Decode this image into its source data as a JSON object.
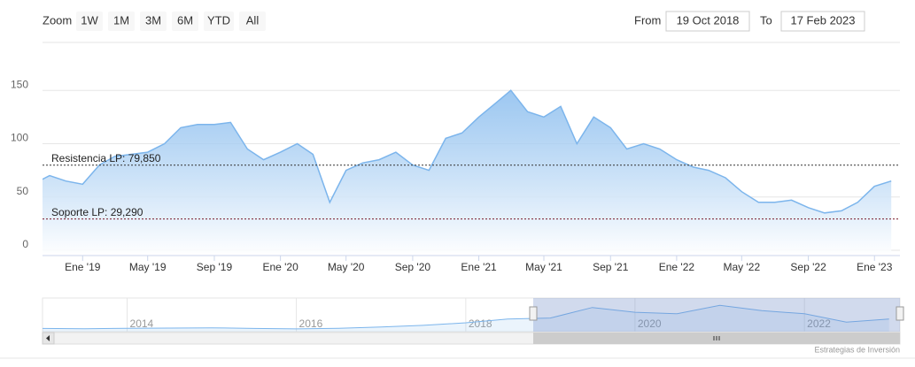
{
  "chart_data": {
    "type": "area",
    "zoom_label": "Zoom",
    "range_buttons": [
      "1W",
      "1M",
      "3M",
      "6M",
      "YTD",
      "All"
    ],
    "from_label": "From",
    "from_value": "19 Oct 2018",
    "to_label": "To",
    "to_value": "17 Feb 2023",
    "color": "#7cb5ec",
    "x": [
      "2018-10",
      "2018-11",
      "2018-12",
      "2019-01",
      "2019-02",
      "2019-03",
      "2019-04",
      "2019-05",
      "2019-06",
      "2019-07",
      "2019-08",
      "2019-09",
      "2019-10",
      "2019-11",
      "2019-12",
      "2020-01",
      "2020-02",
      "2020-03",
      "2020-04",
      "2020-05",
      "2020-06",
      "2020-07",
      "2020-08",
      "2020-09",
      "2020-10",
      "2020-11",
      "2020-12",
      "2021-01",
      "2021-02",
      "2021-03",
      "2021-04",
      "2021-05",
      "2021-06",
      "2021-07",
      "2021-08",
      "2021-09",
      "2021-10",
      "2021-11",
      "2021-12",
      "2022-01",
      "2022-02",
      "2022-03",
      "2022-04",
      "2022-05",
      "2022-06",
      "2022-07",
      "2022-08",
      "2022-09",
      "2022-10",
      "2022-11",
      "2022-12",
      "2023-01",
      "2023-02"
    ],
    "values": [
      62,
      70,
      65,
      62,
      80,
      88,
      90,
      92,
      100,
      115,
      118,
      118,
      120,
      95,
      85,
      92,
      100,
      90,
      45,
      75,
      82,
      85,
      92,
      80,
      75,
      105,
      110,
      125,
      138,
      150,
      130,
      125,
      135,
      100,
      125,
      115,
      95,
      100,
      95,
      85,
      78,
      75,
      68,
      55,
      45,
      45,
      47,
      40,
      35,
      37,
      45,
      60,
      65
    ],
    "xlim": [
      "2018-10-19",
      "2023-02-17"
    ],
    "xticks": [
      {
        "value": "2019-01",
        "label": "Ene '19"
      },
      {
        "value": "2019-05",
        "label": "May '19"
      },
      {
        "value": "2019-09",
        "label": "Sep '19"
      },
      {
        "value": "2020-01",
        "label": "Ene '20"
      },
      {
        "value": "2020-05",
        "label": "May '20"
      },
      {
        "value": "2020-09",
        "label": "Sep '20"
      },
      {
        "value": "2021-01",
        "label": "Ene '21"
      },
      {
        "value": "2021-05",
        "label": "May '21"
      },
      {
        "value": "2021-09",
        "label": "Sep '21"
      },
      {
        "value": "2022-01",
        "label": "Ene '22"
      },
      {
        "value": "2022-05",
        "label": "May '22"
      },
      {
        "value": "2022-09",
        "label": "Sep '22"
      },
      {
        "value": "2023-01",
        "label": "Ene '23"
      }
    ],
    "ylim": [
      -5,
      195
    ],
    "yticks": [
      0,
      50,
      100,
      150
    ],
    "grid": true,
    "plot_lines": [
      {
        "value": 79.85,
        "label": "Resistencia LP: 79,850",
        "color": "#333333"
      },
      {
        "value": 29.29,
        "label": "Soporte LP: 29,290",
        "color": "#7a1a2a"
      }
    ],
    "navigator": {
      "x": [
        "2013-01",
        "2013-07",
        "2014-01",
        "2014-07",
        "2015-01",
        "2015-07",
        "2016-01",
        "2016-07",
        "2017-01",
        "2017-07",
        "2018-01",
        "2018-07",
        "2019-01",
        "2019-07",
        "2020-01",
        "2020-07",
        "2021-01",
        "2021-07",
        "2022-01",
        "2022-07",
        "2023-01"
      ],
      "values": [
        15,
        14,
        16,
        17,
        18,
        15,
        13,
        16,
        22,
        30,
        42,
        60,
        65,
        115,
        92,
        85,
        125,
        100,
        85,
        45,
        60
      ],
      "xlim": [
        "2013-01",
        "2023-02-17"
      ],
      "ylim": [
        0,
        160
      ],
      "xticks": [
        {
          "value": "2014-01",
          "label": "2014"
        },
        {
          "value": "2016-01",
          "label": "2016"
        },
        {
          "value": "2018-01",
          "label": "2018"
        },
        {
          "value": "2020-01",
          "label": "2020"
        },
        {
          "value": "2022-01",
          "label": "2022"
        }
      ]
    },
    "credit": "Estrategias de Inversión"
  }
}
